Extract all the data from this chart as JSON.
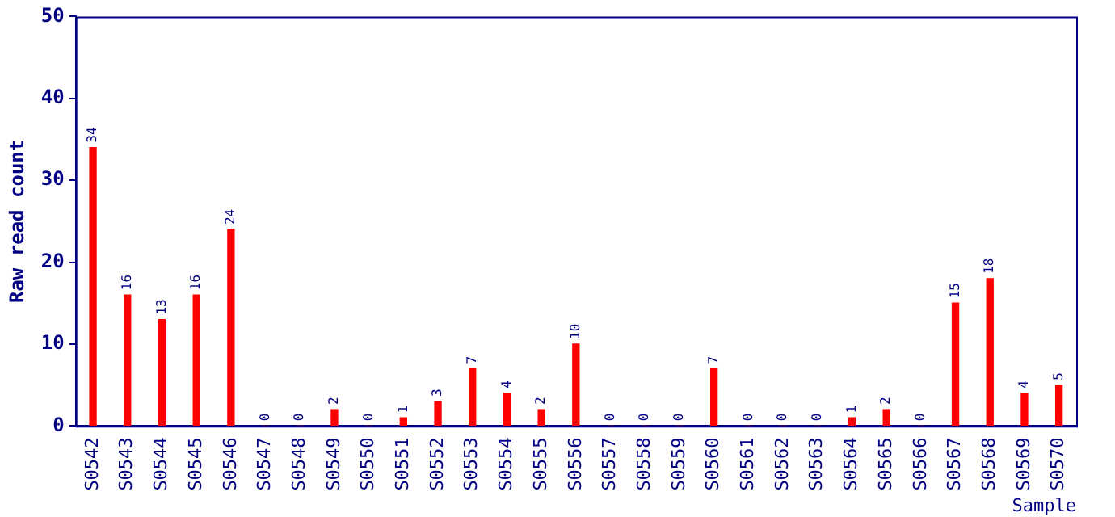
{
  "chart_data": {
    "type": "bar",
    "xlabel": "Sample",
    "ylabel": "Raw read count",
    "categories": [
      "S0542",
      "S0543",
      "S0544",
      "S0545",
      "S0546",
      "S0547",
      "S0548",
      "S0549",
      "S0550",
      "S0551",
      "S0552",
      "S0553",
      "S0554",
      "S0555",
      "S0556",
      "S0557",
      "S0558",
      "S0559",
      "S0560",
      "S0561",
      "S0562",
      "S0563",
      "S0564",
      "S0565",
      "S0566",
      "S0567",
      "S0568",
      "S0569",
      "S0570"
    ],
    "values": [
      34,
      16,
      13,
      16,
      24,
      0,
      0,
      2,
      0,
      1,
      3,
      7,
      4,
      2,
      10,
      0,
      0,
      0,
      7,
      0,
      0,
      0,
      1,
      2,
      0,
      15,
      18,
      4,
      5
    ],
    "color": "#ff0000",
    "ylim": [
      0,
      50
    ],
    "yticks": [
      0,
      10,
      20,
      30,
      40,
      50
    ],
    "grid": false,
    "legend": false,
    "data_labels": true
  }
}
